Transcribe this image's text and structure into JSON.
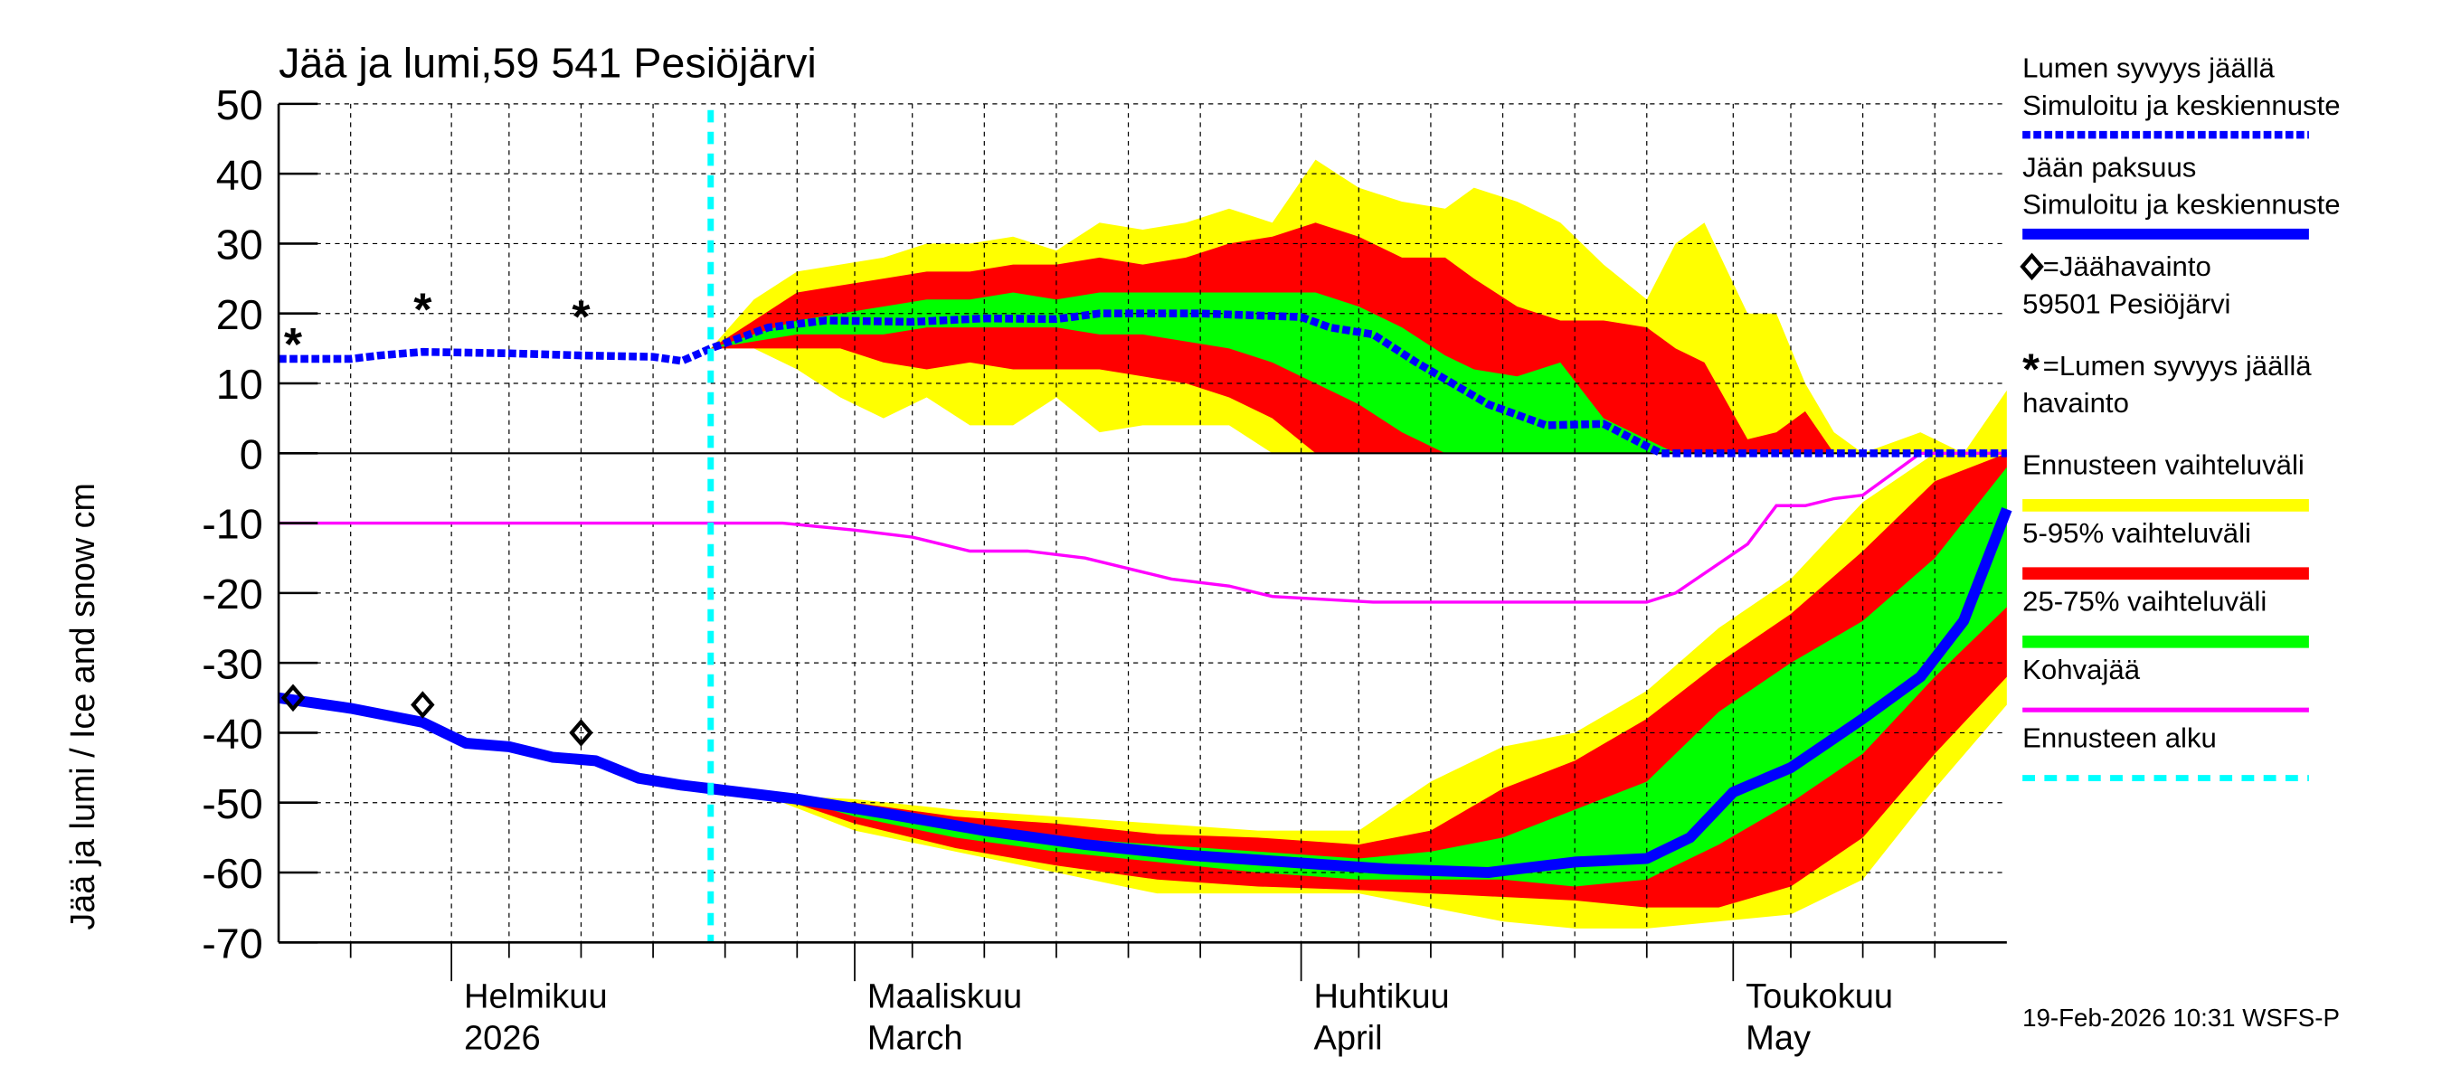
{
  "chart_data": {
    "type": "area",
    "title": "Jää ja lumi,59 541 Pesiöjärvi",
    "ylabel": "Jää ja lumi / Ice and snow    cm",
    "ylim": [
      -70,
      50
    ],
    "yticks": [
      "50",
      "40",
      "30",
      "20",
      "10",
      "0",
      "-10",
      "-20",
      "-30",
      "-40",
      "-50",
      "-60",
      "-70"
    ],
    "xlim": [
      "2026-01-20",
      "2026-05-20"
    ],
    "grid": true,
    "legend_position": "right",
    "x_labels": [
      {
        "date": "2026-02-01",
        "line1": "Helmikuu",
        "line2": "2026"
      },
      {
        "date": "2026-03-01",
        "line1": "Maaliskuu",
        "line2": "March"
      },
      {
        "date": "2026-04-01",
        "line1": "Huhtikuu",
        "line2": "April"
      },
      {
        "date": "2026-05-01",
        "line1": "Toukokuu",
        "line2": "May"
      }
    ],
    "forecast_start": "2026-02-19",
    "footer": "19-Feb-2026 10:31 WSFS-P",
    "colors": {
      "snow": "#0000ff",
      "ice": "#0000ff",
      "yellow": "#ffff00",
      "red": "#ff0000",
      "green": "#00ff00",
      "kohva": "#ff00ff",
      "forecast_start": "#00ffff"
    },
    "legend": [
      {
        "line1": "Lumen syvyys jäällä",
        "line2": "Simuloitu ja keskiennuste",
        "style": "snow"
      },
      {
        "line1": "Jään paksuus",
        "line2": "Simuloitu ja keskiennuste",
        "style": "ice"
      },
      {
        "line1": "=Jäähavainto",
        "line2": "59501 Pesiöjärvi",
        "style": "diamond"
      },
      {
        "line1": "=Lumen syvyys jäällä",
        "line2": "havainto",
        "style": "star"
      },
      {
        "line1": "Ennusteen vaihteluväli",
        "style": "yellow"
      },
      {
        "line1": "5-95% vaihteluväli",
        "style": "red"
      },
      {
        "line1": "25-75% vaihteluväli",
        "style": "green"
      },
      {
        "line1": "Kohvajää",
        "style": "kohva"
      },
      {
        "line1": "Ennusteen alku",
        "style": "forecast_start"
      }
    ],
    "series": {
      "snow_depth": [
        [
          "2026-01-20",
          13.5
        ],
        [
          "2026-01-25",
          13.5
        ],
        [
          "2026-01-27",
          14
        ],
        [
          "2026-01-30",
          14.5
        ],
        [
          "2026-02-05",
          14.3
        ],
        [
          "2026-02-10",
          14
        ],
        [
          "2026-02-15",
          13.8
        ],
        [
          "2026-02-17",
          13.2
        ],
        [
          "2026-02-19",
          15
        ],
        [
          "2026-02-23",
          18
        ],
        [
          "2026-02-27",
          19
        ],
        [
          "2026-03-05",
          18.8
        ],
        [
          "2026-03-10",
          19.3
        ],
        [
          "2026-03-15",
          19.2
        ],
        [
          "2026-03-18",
          20
        ],
        [
          "2026-03-25",
          20
        ],
        [
          "2026-04-01",
          19.5
        ],
        [
          "2026-04-03",
          18
        ],
        [
          "2026-04-06",
          17
        ],
        [
          "2026-04-09",
          13
        ],
        [
          "2026-04-14",
          7
        ],
        [
          "2026-04-18",
          4
        ],
        [
          "2026-04-22",
          4.2
        ],
        [
          "2026-04-25",
          1
        ],
        [
          "2026-04-26",
          0
        ],
        [
          "2026-05-20",
          0
        ]
      ],
      "ice_thickness": [
        [
          "2026-01-20",
          -35
        ],
        [
          "2026-01-25",
          -36.5
        ],
        [
          "2026-01-30",
          -38.5
        ],
        [
          "2026-02-02",
          -41.5
        ],
        [
          "2026-02-05",
          -42
        ],
        [
          "2026-02-08",
          -43.5
        ],
        [
          "2026-02-11",
          -44
        ],
        [
          "2026-02-14",
          -46.5
        ],
        [
          "2026-02-17",
          -47.5
        ],
        [
          "2026-02-19",
          -48
        ],
        [
          "2026-02-25",
          -49.5
        ],
        [
          "2026-03-03",
          -51.5
        ],
        [
          "2026-03-10",
          -54
        ],
        [
          "2026-03-17",
          -56
        ],
        [
          "2026-03-24",
          -57.5
        ],
        [
          "2026-03-31",
          -58.5
        ],
        [
          "2026-04-07",
          -59.5
        ],
        [
          "2026-04-14",
          -60
        ],
        [
          "2026-04-20",
          -58.5
        ],
        [
          "2026-04-25",
          -58
        ],
        [
          "2026-04-28",
          -55
        ],
        [
          "2026-05-01",
          -48.5
        ],
        [
          "2026-05-05",
          -45
        ],
        [
          "2026-05-10",
          -38
        ],
        [
          "2026-05-14",
          -32
        ],
        [
          "2026-05-17",
          -24
        ],
        [
          "2026-05-20",
          -8
        ]
      ],
      "kohvajaa": [
        [
          "2026-01-20",
          -10
        ],
        [
          "2026-02-24",
          -10
        ],
        [
          "2026-03-01",
          -11
        ],
        [
          "2026-03-05",
          -12
        ],
        [
          "2026-03-09",
          -14
        ],
        [
          "2026-03-13",
          -14
        ],
        [
          "2026-03-17",
          -15
        ],
        [
          "2026-03-21",
          -17
        ],
        [
          "2026-03-23",
          -18
        ],
        [
          "2026-03-27",
          -19
        ],
        [
          "2026-03-30",
          -20.5
        ],
        [
          "2026-04-06",
          -21.3
        ],
        [
          "2026-04-25",
          -21.3
        ],
        [
          "2026-04-27",
          -20
        ],
        [
          "2026-05-02",
          -13
        ],
        [
          "2026-05-04",
          -7.5
        ],
        [
          "2026-05-06",
          -7.5
        ],
        [
          "2026-05-08",
          -6.5
        ],
        [
          "2026-05-10",
          -6
        ],
        [
          "2026-05-12",
          -3
        ],
        [
          "2026-05-14",
          0
        ],
        [
          "2026-05-20",
          0
        ]
      ],
      "snow_bands": {
        "columns": [
          "date",
          "yellow_upper",
          "red_upper",
          "green_upper",
          "green_lower",
          "red_lower",
          "yellow_lower"
        ],
        "rows": [
          [
            "2026-02-19",
            15,
            15,
            15,
            15,
            15,
            15
          ],
          [
            "2026-02-22",
            22,
            19,
            17,
            16,
            15,
            15
          ],
          [
            "2026-02-25",
            26,
            23,
            19,
            17,
            15,
            12
          ],
          [
            "2026-02-28",
            27,
            24,
            20,
            17,
            15,
            8
          ],
          [
            "2026-03-03",
            28,
            25,
            21,
            17,
            13,
            5
          ],
          [
            "2026-03-06",
            30,
            26,
            22,
            18,
            12,
            8
          ],
          [
            "2026-03-09",
            30,
            26,
            22,
            18,
            13,
            4
          ],
          [
            "2026-03-12",
            31,
            27,
            23,
            18,
            12,
            4
          ],
          [
            "2026-03-15",
            29,
            27,
            22,
            18,
            12,
            8
          ],
          [
            "2026-03-18",
            33,
            28,
            23,
            17,
            12,
            3
          ],
          [
            "2026-03-21",
            32,
            27,
            23,
            17,
            11,
            4
          ],
          [
            "2026-03-24",
            33,
            28,
            23,
            16,
            10,
            4
          ],
          [
            "2026-03-27",
            35,
            30,
            23,
            15,
            8,
            4
          ],
          [
            "2026-03-30",
            33,
            31,
            23,
            13,
            5,
            0
          ],
          [
            "2026-04-02",
            42,
            33,
            23,
            10,
            0,
            0
          ],
          [
            "2026-04-05",
            38,
            31,
            21,
            7,
            0,
            0
          ],
          [
            "2026-04-08",
            36,
            28,
            18,
            3,
            0,
            0
          ],
          [
            "2026-04-11",
            35,
            28,
            14,
            0,
            0,
            0
          ],
          [
            "2026-04-13",
            38,
            25,
            12,
            0,
            0,
            0
          ],
          [
            "2026-04-16",
            36,
            21,
            11,
            0,
            0,
            0
          ],
          [
            "2026-04-19",
            33,
            19,
            13,
            0,
            0,
            0
          ],
          [
            "2026-04-22",
            27,
            19,
            5,
            0,
            0,
            0
          ],
          [
            "2026-04-25",
            22,
            18,
            2,
            0,
            0,
            0
          ],
          [
            "2026-04-27",
            30,
            15,
            0,
            0,
            0,
            0
          ],
          [
            "2026-04-29",
            33,
            13,
            0,
            0,
            0,
            0
          ],
          [
            "2026-05-02",
            20,
            2,
            0,
            0,
            0,
            0
          ],
          [
            "2026-05-04",
            20,
            3,
            0,
            0,
            0,
            0
          ],
          [
            "2026-05-06",
            10,
            6,
            0,
            0,
            0,
            0
          ],
          [
            "2026-05-08",
            3,
            0,
            0,
            0,
            0,
            0
          ],
          [
            "2026-05-10",
            0,
            0,
            0,
            0,
            0,
            0
          ],
          [
            "2026-05-14",
            3,
            0,
            0,
            0,
            0,
            0
          ],
          [
            "2026-05-17",
            0,
            0,
            0,
            0,
            0,
            0
          ],
          [
            "2026-05-20",
            9,
            0,
            0,
            0,
            0,
            0
          ]
        ]
      },
      "ice_bands": {
        "columns": [
          "date",
          "yellow_upper",
          "red_upper",
          "green_upper",
          "green_lower",
          "red_lower",
          "yellow_lower"
        ],
        "rows": [
          [
            "2026-02-19",
            -48,
            -48,
            -48,
            -48,
            -48,
            -48
          ],
          [
            "2026-02-24",
            -49,
            -49,
            -49,
            -49,
            -49.5,
            -50
          ],
          [
            "2026-03-01",
            -49.5,
            -50,
            -51,
            -52,
            -53,
            -54
          ],
          [
            "2026-03-08",
            -51,
            -52,
            -53,
            -55,
            -56.5,
            -57
          ],
          [
            "2026-03-15",
            -52,
            -53,
            -55,
            -57,
            -59,
            -60
          ],
          [
            "2026-03-22",
            -53,
            -54.5,
            -56,
            -58.5,
            -61,
            -63
          ],
          [
            "2026-03-29",
            -54,
            -55,
            -57,
            -60,
            -62,
            -63
          ],
          [
            "2026-04-05",
            -54,
            -56,
            -58,
            -61,
            -62.5,
            -63
          ],
          [
            "2026-04-10",
            -47,
            -54,
            -57,
            -61,
            -63,
            -65
          ],
          [
            "2026-04-15",
            -42,
            -48,
            -55,
            -61,
            -63.5,
            -67
          ],
          [
            "2026-04-20",
            -40,
            -44,
            -51,
            -62,
            -64,
            -68
          ],
          [
            "2026-04-25",
            -34,
            -38,
            -47,
            -61,
            -65,
            -68
          ],
          [
            "2026-04-30",
            -25,
            -30,
            -37,
            -56,
            -65,
            -67
          ],
          [
            "2026-05-05",
            -18,
            -23,
            -30,
            -50,
            -62,
            -66
          ],
          [
            "2026-05-10",
            -7,
            -14,
            -24,
            -43,
            -55,
            -61
          ],
          [
            "2026-05-15",
            0,
            -4,
            -15,
            -32,
            -43,
            -48
          ],
          [
            "2026-05-20",
            0,
            0,
            -2,
            -22,
            -32,
            -36
          ]
        ]
      },
      "snow_observations": [
        [
          "2026-01-21",
          16
        ],
        [
          "2026-01-30",
          21
        ],
        [
          "2026-02-10",
          20
        ]
      ],
      "ice_observations": [
        [
          "2026-01-21",
          -35
        ],
        [
          "2026-01-30",
          -36
        ],
        [
          "2026-02-10",
          -40
        ]
      ]
    }
  }
}
